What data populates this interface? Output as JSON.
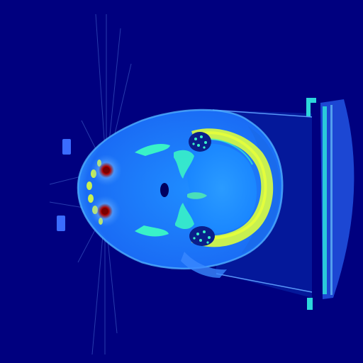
{
  "scan": {
    "kind": "axial CT slice of a head",
    "colormap": "jet",
    "colors": {
      "background": "#00007f",
      "soft_tissue": "#1a7cff",
      "soft_tissue_dark": "#0050e6",
      "fat": "#0030c8",
      "brain": "#1e8fff",
      "bone": "#c8f050",
      "bone_bright": "#e8ff3a",
      "bone_cyan": "#39f2c8",
      "air": "#000060",
      "metal": "#7a0000",
      "metal_core": "#ff3b00",
      "streak": "#6fa8ff",
      "table": "#1e4bd8",
      "table_edge": "#2fe3e0"
    }
  }
}
